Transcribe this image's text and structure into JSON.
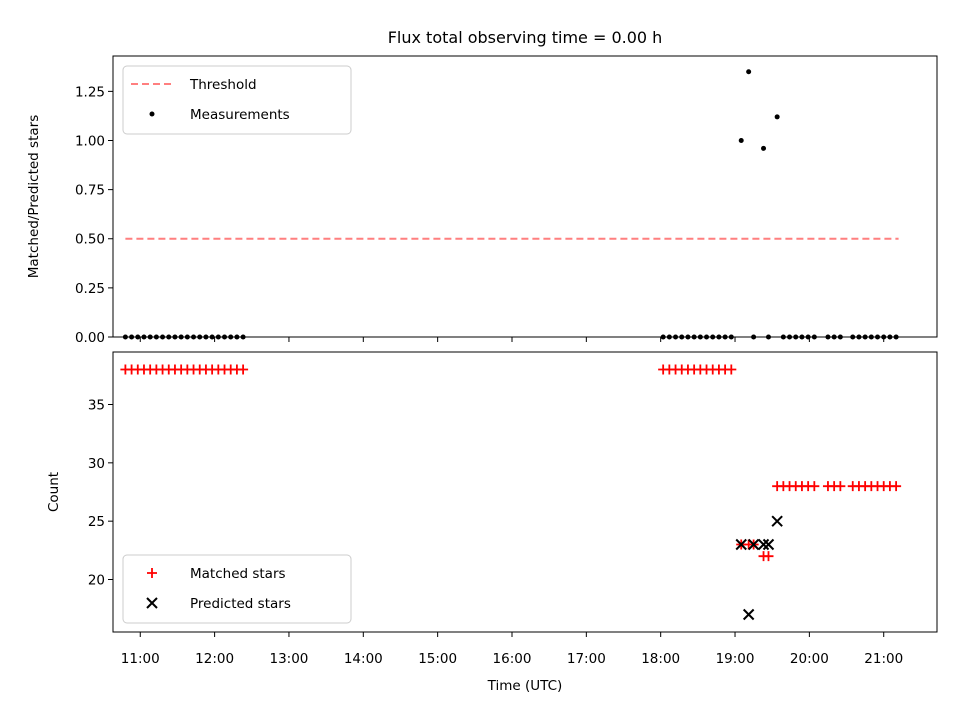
{
  "title": "Flux total observing time = 0.00 h",
  "xlabel": "Time (UTC)",
  "xticks": [
    "11:00",
    "12:00",
    "13:00",
    "14:00",
    "15:00",
    "16:00",
    "17:00",
    "18:00",
    "19:00",
    "20:00",
    "21:00"
  ],
  "colors": {
    "threshold": "#ff7f7f",
    "measurement": "#000000",
    "matched": "#ff0000",
    "predicted": "#000000"
  },
  "chart_data": [
    {
      "type": "scatter",
      "ylabel": "Matched/Predicted stars",
      "xlim": [
        "10:38",
        "21:43"
      ],
      "ylim": [
        0,
        1.43
      ],
      "yticks": [
        "0.00",
        "0.25",
        "0.50",
        "0.75",
        "1.00",
        "1.25"
      ],
      "legend": "upper-left",
      "series": [
        {
          "name": "Threshold",
          "style": "dashed-line",
          "x": [
            "10:48",
            "21:12"
          ],
          "y": [
            0.5,
            0.5
          ]
        },
        {
          "name": "Measurements",
          "style": "dot",
          "x": [
            "10:48",
            "10:53",
            "10:58",
            "11:03",
            "11:08",
            "11:13",
            "11:18",
            "11:23",
            "11:28",
            "11:33",
            "11:38",
            "11:43",
            "11:48",
            "11:53",
            "11:58",
            "12:03",
            "12:08",
            "12:13",
            "12:18",
            "12:23",
            "18:02",
            "18:07",
            "18:12",
            "18:17",
            "18:22",
            "18:27",
            "18:32",
            "18:37",
            "18:42",
            "18:47",
            "18:52",
            "18:57",
            "19:05",
            "19:11",
            "19:15",
            "19:23",
            "19:27",
            "19:34",
            "19:39",
            "19:44",
            "19:49",
            "19:54",
            "19:59",
            "20:04",
            "20:15",
            "20:20",
            "20:25",
            "20:35",
            "20:40",
            "20:45",
            "20:50",
            "20:55",
            "21:00",
            "21:05",
            "21:10"
          ],
          "y": [
            0,
            0,
            0,
            0,
            0,
            0,
            0,
            0,
            0,
            0,
            0,
            0,
            0,
            0,
            0,
            0,
            0,
            0,
            0,
            0,
            0,
            0,
            0,
            0,
            0,
            0,
            0,
            0,
            0,
            0,
            0,
            0,
            1.0,
            1.35,
            0,
            0.96,
            0,
            1.12,
            0,
            0,
            0,
            0,
            0,
            0,
            0,
            0,
            0,
            0,
            0,
            0,
            0,
            0,
            0,
            0,
            0
          ]
        }
      ]
    },
    {
      "type": "scatter",
      "ylabel": "Count",
      "xlim": [
        "10:38",
        "21:43"
      ],
      "ylim": [
        15.5,
        39.5
      ],
      "yticks": [
        "20",
        "25",
        "30",
        "35"
      ],
      "legend": "lower-left",
      "series": [
        {
          "name": "Matched stars",
          "marker": "plus",
          "x": [
            "10:48",
            "10:53",
            "10:58",
            "11:03",
            "11:08",
            "11:13",
            "11:18",
            "11:23",
            "11:28",
            "11:33",
            "11:38",
            "11:43",
            "11:48",
            "11:53",
            "11:58",
            "12:03",
            "12:08",
            "12:13",
            "12:18",
            "12:23",
            "18:02",
            "18:07",
            "18:12",
            "18:17",
            "18:22",
            "18:27",
            "18:32",
            "18:37",
            "18:42",
            "18:47",
            "18:52",
            "18:57",
            "19:05",
            "19:11",
            "19:15",
            "19:23",
            "19:27",
            "19:34",
            "19:39",
            "19:44",
            "19:49",
            "19:54",
            "19:59",
            "20:04",
            "20:15",
            "20:20",
            "20:25",
            "20:35",
            "20:40",
            "20:45",
            "20:50",
            "20:55",
            "21:00",
            "21:05",
            "21:10"
          ],
          "y": [
            38,
            38,
            38,
            38,
            38,
            38,
            38,
            38,
            38,
            38,
            38,
            38,
            38,
            38,
            38,
            38,
            38,
            38,
            38,
            38,
            38,
            38,
            38,
            38,
            38,
            38,
            38,
            38,
            38,
            38,
            38,
            38,
            23,
            23,
            23,
            22,
            22,
            28,
            28,
            28,
            28,
            28,
            28,
            28,
            28,
            28,
            28,
            28,
            28,
            28,
            28,
            28,
            28,
            28,
            28
          ]
        },
        {
          "name": "Predicted stars",
          "marker": "x",
          "x": [
            "19:05",
            "19:11",
            "19:15",
            "19:23",
            "19:27",
            "19:34"
          ],
          "y": [
            23,
            17,
            23,
            23,
            23,
            25
          ]
        }
      ]
    }
  ]
}
